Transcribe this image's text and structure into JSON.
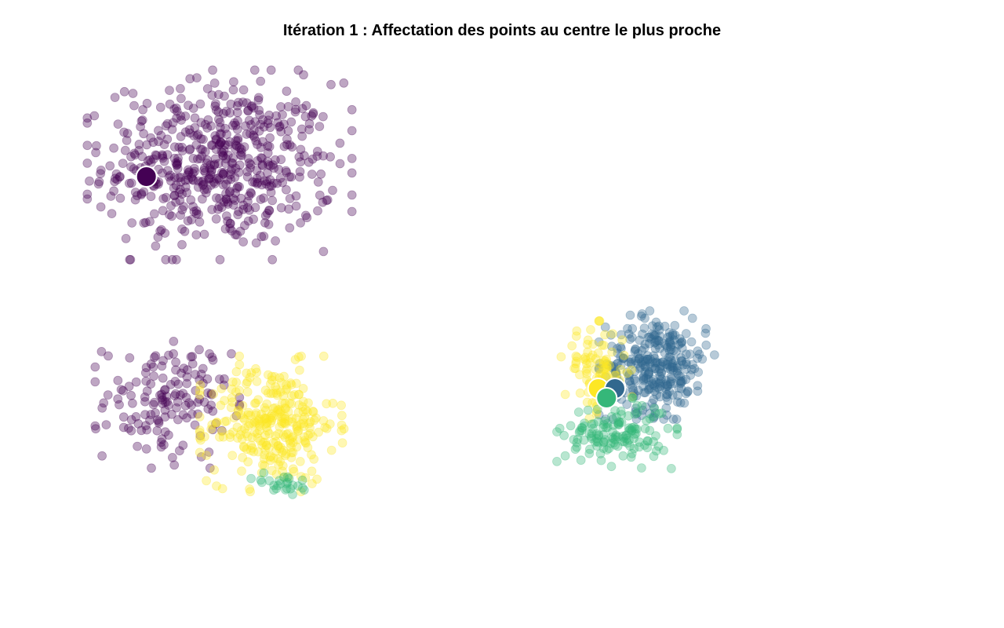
{
  "chart_data": {
    "type": "scatter",
    "title": "Itération 1 : Affectation des points au centre le plus proche",
    "xlabel": "",
    "ylabel": "",
    "grid": false,
    "axes_visible": false,
    "legend": "none",
    "palette": {
      "purple": "#440154",
      "blue": "#31688e",
      "green": "#35b779",
      "yellow": "#fde725"
    },
    "point_opacity": 0.35,
    "clusters": [
      {
        "cluster": "purple",
        "x": [
          -1.0,
          1.75
        ],
        "y": [
          0.5,
          2.25
        ],
        "count": 560
      },
      {
        "cluster": "purple",
        "x": [
          -1.0,
          0.5
        ],
        "y": [
          -1.75,
          -0.5
        ],
        "count": 150
      },
      {
        "cluster": "yellow",
        "x": [
          0.25,
          1.75
        ],
        "y": [
          -2.0,
          -0.75
        ],
        "count": 300
      },
      {
        "cluster": "green",
        "x": [
          0.75,
          1.5
        ],
        "y": [
          -2.15,
          -1.9
        ],
        "count": 25
      },
      {
        "cluster": "blue",
        "x": [
          5.0,
          6.2
        ],
        "y": [
          -1.25,
          -0.25
        ],
        "count": 300
      },
      {
        "cluster": "yellow",
        "x": [
          4.5,
          5.25
        ],
        "y": [
          -1.25,
          -0.35
        ],
        "count": 90
      },
      {
        "cluster": "green",
        "x": [
          4.5,
          5.75
        ],
        "y": [
          -1.8,
          -1.15
        ],
        "count": 140
      }
    ],
    "centers": [
      {
        "cluster": "purple",
        "x": -0.5,
        "y": 1.25
      },
      {
        "cluster": "yellow",
        "x": 4.9,
        "y": -1.0
      },
      {
        "cluster": "blue",
        "x": 5.1,
        "y": -1.0
      },
      {
        "cluster": "green",
        "x": 5.0,
        "y": -1.1
      }
    ]
  }
}
